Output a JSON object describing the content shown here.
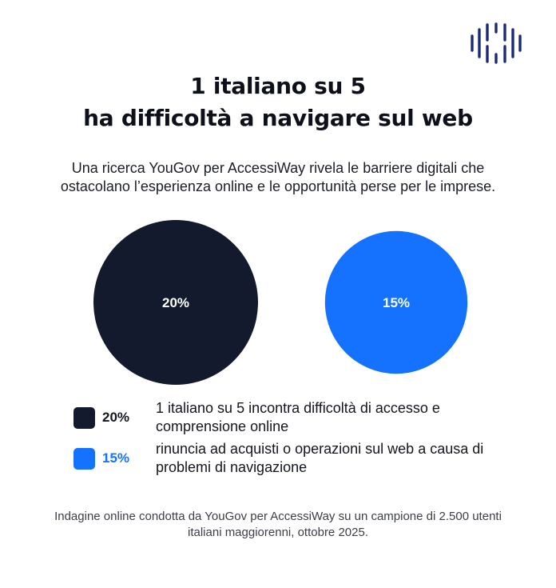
{
  "title": {
    "line1": "1 italiano su 5",
    "line2": "ha difficoltà a navigare sul web"
  },
  "subtitle": {
    "line1": "Una ricerca YouGov per AccessiWay rivela le barriere digitali che",
    "line2": "ostacolano l’esperienza online e le opportunità perse per le imprese."
  },
  "colors": {
    "dark": "#141a2e",
    "blue": "#1472ff",
    "logo": "#1a2a78"
  },
  "logo_icon": "accessiway-logo-icon",
  "chart_data": {
    "type": "bubble",
    "unit": "%",
    "categories": [
      "20%",
      "15%"
    ],
    "values": [
      20,
      15
    ],
    "colors": [
      "#141a2e",
      "#1472ff"
    ]
  },
  "legend": [
    {
      "value": "20%",
      "color": "#141a2e",
      "line1": "1 italiano su 5 incontra difficoltà di accesso e",
      "line2": "comprensione online"
    },
    {
      "value": "15%",
      "color": "#1472ff",
      "line1": "rinuncia ad acquisti o operazioni sul web a causa di",
      "line2": "problemi di navigazione"
    }
  ],
  "footnote": {
    "line1": "Indagine online condotta da YouGov per AccessiWay su un campione di 2.500 utenti",
    "line2": "italiani maggiorenni, ottobre 2025."
  }
}
